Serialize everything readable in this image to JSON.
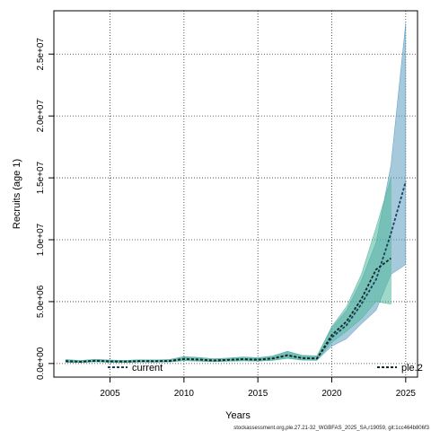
{
  "chart_data": {
    "type": "line",
    "title": "",
    "xlabel": "Years",
    "ylabel": "Recruits (age 1)",
    "xlim": [
      2001.2,
      2025.8
    ],
    "ylim": [
      -1100000,
      28500000
    ],
    "grid": true,
    "legend_placement": "bottom",
    "x_ticks": [
      2005,
      2010,
      2015,
      2020,
      2025
    ],
    "x_tick_labels": [
      "2005",
      "2010",
      "2015",
      "2020",
      "2025"
    ],
    "y_ticks": [
      0,
      5000000,
      10000000,
      15000000,
      20000000,
      25000000
    ],
    "y_tick_labels": [
      "0.0e+00",
      "5.0e+06",
      "1.0e+07",
      "1.5e+07",
      "2.0e+07",
      "2.5e+07"
    ],
    "series": [
      {
        "name": "current",
        "color": "#3a7fa0",
        "band_color": "#5c9cc0",
        "line_color": "#1c3f5a",
        "x": [
          2002,
          2003,
          2004,
          2005,
          2006,
          2007,
          2008,
          2009,
          2010,
          2011,
          2012,
          2013,
          2014,
          2015,
          2016,
          2017,
          2018,
          2019,
          2020,
          2021,
          2022,
          2023,
          2024,
          2025
        ],
        "y": [
          200000,
          150000,
          230000,
          180000,
          160000,
          200000,
          190000,
          210000,
          380000,
          330000,
          250000,
          300000,
          360000,
          320000,
          420000,
          680000,
          450000,
          420000,
          2100000,
          3100000,
          4800000,
          6800000,
          10500000,
          14700000
        ],
        "lower": [
          100000,
          80000,
          140000,
          100000,
          90000,
          120000,
          110000,
          130000,
          240000,
          200000,
          150000,
          190000,
          230000,
          200000,
          270000,
          430000,
          290000,
          270000,
          1400000,
          2000000,
          3200000,
          4300000,
          7200000,
          8000000
        ],
        "upper": [
          320000,
          240000,
          340000,
          280000,
          250000,
          300000,
          290000,
          320000,
          560000,
          490000,
          380000,
          440000,
          530000,
          470000,
          610000,
          990000,
          660000,
          620000,
          2900000,
          4300000,
          6700000,
          9800000,
          16000000,
          27500000
        ]
      },
      {
        "name": "ple.2",
        "color": "#2aa58c",
        "band_color": "#4fb89a",
        "line_color": "#0e2a24",
        "x": [
          2002,
          2003,
          2004,
          2005,
          2006,
          2007,
          2008,
          2009,
          2010,
          2011,
          2012,
          2013,
          2014,
          2015,
          2016,
          2017,
          2018,
          2019,
          2020,
          2021,
          2022,
          2023,
          2024
        ],
        "y": [
          190000,
          140000,
          220000,
          170000,
          150000,
          190000,
          180000,
          200000,
          360000,
          310000,
          240000,
          290000,
          340000,
          300000,
          400000,
          650000,
          430000,
          400000,
          2300000,
          3400000,
          5200000,
          7600000,
          8500000
        ],
        "lower": [
          90000,
          70000,
          130000,
          90000,
          80000,
          110000,
          100000,
          120000,
          220000,
          190000,
          140000,
          180000,
          210000,
          190000,
          250000,
          410000,
          270000,
          250000,
          1700000,
          2600000,
          3600000,
          5000000,
          4800000
        ],
        "upper": [
          310000,
          230000,
          330000,
          270000,
          240000,
          290000,
          280000,
          310000,
          540000,
          470000,
          370000,
          420000,
          510000,
          450000,
          590000,
          960000,
          640000,
          600000,
          3000000,
          4600000,
          7200000,
          11000000,
          15000000
        ]
      }
    ],
    "footer": "stockassessment.org,ple.27.21-32_WGBFAS_2025_SA,r19059, git:1cc464b806f3"
  }
}
